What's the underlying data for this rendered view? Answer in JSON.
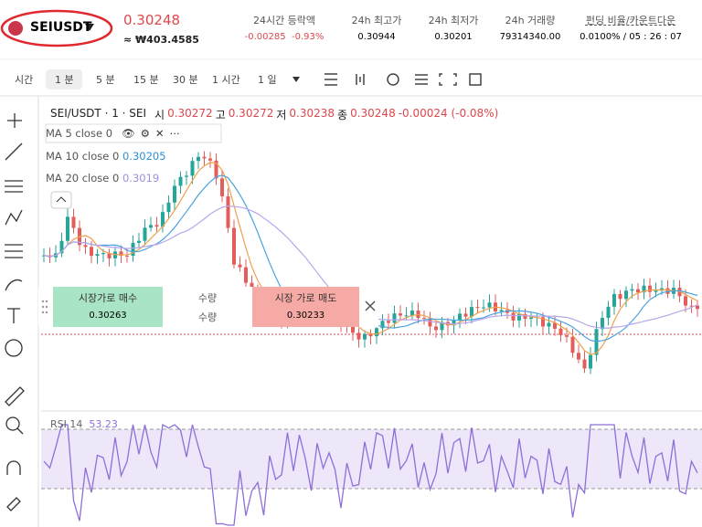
{
  "header": {
    "symbol": "SEIUSDT",
    "price": "0.30248",
    "price_krw": "≈ ₩403.4585",
    "stats": [
      {
        "label": "24시간 등락액",
        "values": [
          "-0.00285",
          "-0.93%"
        ]
      },
      {
        "label": "24h 최고가",
        "value": "0.30944"
      },
      {
        "label": "24h 최저가",
        "value": "0.30201"
      },
      {
        "label": "24h 거래량",
        "value": "79314340.00"
      },
      {
        "label": "펀딩 비율/카운트다운",
        "value": "0.0100% / 05 : 26 : 07"
      }
    ]
  },
  "toolbar": {
    "intervals": [
      "시간",
      "1 분",
      "5 분",
      "15 분",
      "30 분",
      "1 시간",
      "1 일"
    ]
  },
  "legend": {
    "title": "SEI/USDT · 1 · SEI",
    "ohlc": [
      {
        "label": "시",
        "value": "0.30272"
      },
      {
        "label": "고",
        "value": "0.30272"
      },
      {
        "label": "저",
        "value": "0.30238"
      },
      {
        "label": "종",
        "value": "0.30248"
      }
    ],
    "change": "-0.00024 (-0.08%)"
  },
  "indicators": [
    {
      "name": "MA 5 close 0"
    },
    {
      "name": "MA 10 close 0",
      "value": "0.30205"
    },
    {
      "name": "MA 20 close 0",
      "value": "0.3019"
    }
  ],
  "trade_panel": {
    "buy_label": "시장가로 매수",
    "buy_price": "0.30263",
    "qty_label": "수량",
    "qty_value": "수량",
    "sell_label": "시장 가로 매도",
    "sell_price": "0.30233"
  },
  "rsi": {
    "name": "RSI 14",
    "value": "53.23"
  }
}
